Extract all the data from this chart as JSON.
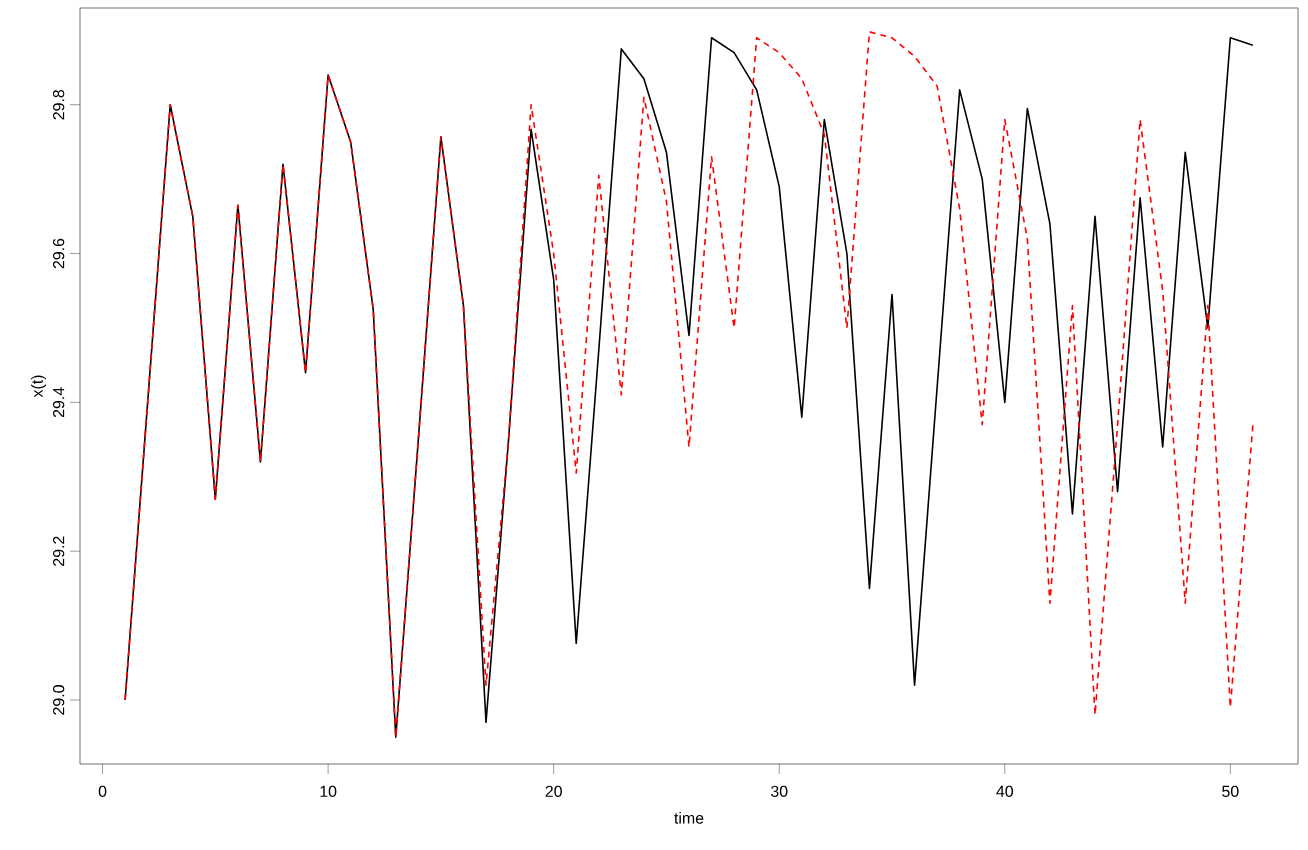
{
  "chart_data": {
    "type": "line",
    "xlabel": "time",
    "ylabel": "x(t)",
    "x": [
      1,
      2,
      3,
      4,
      5,
      6,
      7,
      8,
      9,
      10,
      11,
      12,
      13,
      14,
      15,
      16,
      17,
      18,
      19,
      20,
      21,
      22,
      23,
      24,
      25,
      26,
      27,
      28,
      29,
      30,
      31,
      32,
      33,
      34,
      35,
      36,
      37,
      38,
      39,
      40,
      41,
      42,
      43,
      44,
      45,
      46,
      47,
      48,
      49,
      50,
      51
    ],
    "series": [
      {
        "color": "#000000",
        "line_style": "solid",
        "values": [
          29.0,
          29.4,
          29.8,
          29.65,
          29.27,
          29.665,
          29.32,
          29.72,
          29.44,
          29.84,
          29.75,
          29.525,
          28.95,
          29.35,
          29.757,
          29.53,
          28.97,
          29.35,
          29.767,
          29.565,
          29.076,
          29.47,
          29.875,
          29.835,
          29.736,
          29.49,
          29.89,
          29.87,
          29.82,
          29.69,
          29.38,
          29.78,
          29.6,
          29.15,
          29.545,
          29.02,
          29.42,
          29.82,
          29.7,
          29.4,
          29.795,
          29.64,
          29.25,
          29.65,
          29.28,
          29.675,
          29.34,
          29.736,
          29.5,
          29.89,
          29.88
        ]
      },
      {
        "color": "#ff0000",
        "line_style": "dashed",
        "values": [
          29.0,
          29.4,
          29.8,
          29.65,
          29.27,
          29.665,
          29.32,
          29.72,
          29.44,
          29.84,
          29.75,
          29.525,
          28.95,
          29.35,
          29.757,
          29.53,
          29.02,
          29.35,
          29.8,
          29.6,
          29.305,
          29.705,
          29.41,
          29.81,
          29.67,
          29.34,
          29.73,
          29.5,
          29.89,
          29.87,
          29.835,
          29.76,
          29.5,
          29.898,
          29.89,
          29.865,
          29.825,
          29.66,
          29.37,
          29.78,
          29.62,
          29.13,
          29.53,
          28.98,
          29.37,
          29.78,
          29.55,
          29.13,
          29.53,
          28.99,
          29.37
        ]
      }
    ],
    "xlim": [
      -1,
      53
    ],
    "ylim": [
      28.914,
      29.93
    ],
    "xticks": [
      0,
      10,
      20,
      30,
      40,
      50
    ],
    "yticks": [
      {
        "value": 29.0,
        "label": "29.0"
      },
      {
        "value": 29.2,
        "label": "29.2"
      },
      {
        "value": 29.4,
        "label": "29.4"
      },
      {
        "value": 29.6,
        "label": "29.6"
      },
      {
        "value": 29.8,
        "label": "29.8"
      }
    ],
    "marker": "none"
  }
}
